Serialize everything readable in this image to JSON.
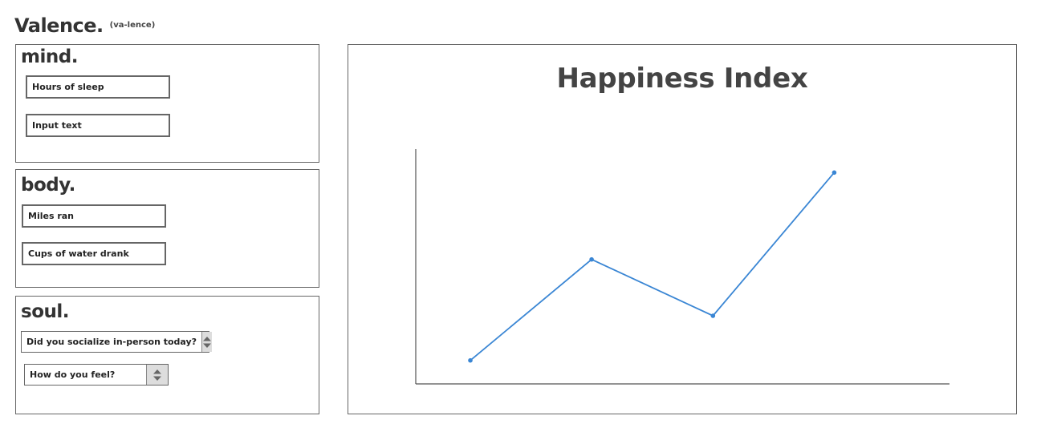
{
  "app": {
    "name": "Valence.",
    "pronunciation": "(va-lence)"
  },
  "mind": {
    "title": "mind.",
    "sleep_placeholder": "Hours of sleep",
    "text_placeholder": "Input text"
  },
  "body": {
    "title": "body.",
    "miles_placeholder": "Miles ran",
    "water_placeholder": "Cups of water drank"
  },
  "soul": {
    "title": "soul.",
    "socialize_value": "Did you socialize in-person today?",
    "feel_value": "How do you feel?"
  },
  "chart_data": {
    "type": "line",
    "title": "Happiness Index",
    "xlabel": "",
    "ylabel": "",
    "x": [
      1,
      2,
      3,
      4
    ],
    "values": [
      0.1,
      0.53,
      0.29,
      0.9
    ],
    "xlim": [
      0.55,
      4.95
    ],
    "ylim": [
      0,
      1
    ],
    "grid": false,
    "color": "#3a86d4"
  }
}
